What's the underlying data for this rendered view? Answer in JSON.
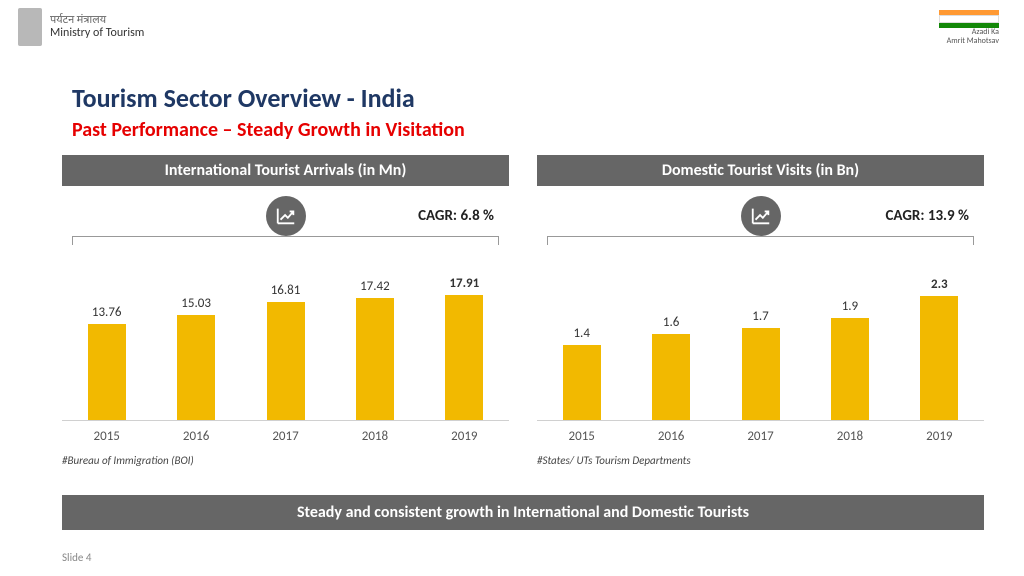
{
  "header": {
    "ministry_hi": "पर्यटन मंत्रालय",
    "ministry_en": "Ministry of Tourism",
    "right_logo_l1": "Azadi Ka",
    "right_logo_l2": "Amrit Mahotsav"
  },
  "title": "Tourism Sector Overview - India",
  "subtitle": "Past Performance – Steady Growth in Visitation",
  "charts": {
    "left": {
      "type": "bar",
      "header": "International Tourist Arrivals (in Mn)",
      "cagr": "CAGR: 6.8 %",
      "categories": [
        "2015",
        "2016",
        "2017",
        "2018",
        "2019"
      ],
      "values": [
        13.76,
        15.03,
        16.81,
        17.42,
        17.91
      ],
      "labels": [
        "13.76",
        "15.03",
        "16.81",
        "17.42",
        "17.91"
      ],
      "bold_last": true,
      "bar_color": "#f2b900",
      "ylim": [
        0,
        20
      ],
      "source": "#Bureau of Immigration (BOI)"
    },
    "right": {
      "type": "bar",
      "header": "Domestic Tourist Visits (in Bn)",
      "cagr": "CAGR: 13.9 %",
      "categories": [
        "2015",
        "2016",
        "2017",
        "2018",
        "2019"
      ],
      "values": [
        1.4,
        1.6,
        1.7,
        1.9,
        2.3
      ],
      "labels": [
        "1.4",
        "1.6",
        "1.7",
        "1.9",
        "2.3"
      ],
      "bold_last": true,
      "bar_color": "#f2b900",
      "ylim": [
        0,
        2.6
      ],
      "source": "#States/ UTs Tourism Departments"
    }
  },
  "footer": "Steady and consistent growth in International and Domestic Tourists",
  "slide": "Slide 4",
  "colors": {
    "header_bar": "#666666",
    "title": "#1f3864",
    "subtitle": "#e60000",
    "bar": "#f2b900",
    "background": "#ffffff"
  }
}
